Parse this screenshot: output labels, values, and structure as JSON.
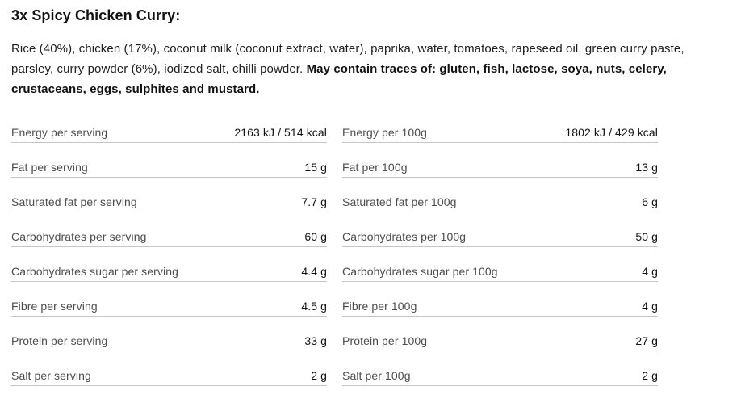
{
  "title": "3x Spicy Chicken Curry:",
  "ingredients": {
    "regular": "Rice (40%), chicken (17%), coconut milk (coconut extract, water), paprika, water, tomatoes, rapeseed oil, green curry paste, parsley, curry powder (6%), iodized salt, chilli powder. ",
    "bold": "May contain traces of: gluten, fish, lactose, soya, nuts, celery, crustaceans, eggs, sulphites and mustard."
  },
  "nutrition": {
    "per_serving": [
      {
        "label": "Energy per serving",
        "value": "2163 kJ / 514 kcal"
      },
      {
        "label": "Fat per serving",
        "value": "15 g"
      },
      {
        "label": "Saturated fat per serving",
        "value": "7.7 g"
      },
      {
        "label": "Carbohydrates per serving",
        "value": "60 g"
      },
      {
        "label": "Carbohydrates sugar per serving",
        "value": "4.4 g"
      },
      {
        "label": "Fibre per serving",
        "value": "4.5 g"
      },
      {
        "label": "Protein per serving",
        "value": "33 g"
      },
      {
        "label": "Salt per serving",
        "value": "2 g"
      }
    ],
    "per_100g": [
      {
        "label": "Energy per 100g",
        "value": "1802 kJ / 429 kcal"
      },
      {
        "label": "Fat per 100g",
        "value": "13 g"
      },
      {
        "label": "Saturated fat per 100g",
        "value": "6 g"
      },
      {
        "label": "Carbohydrates per 100g",
        "value": "50 g"
      },
      {
        "label": "Carbohydrates sugar per 100g",
        "value": "4 g"
      },
      {
        "label": "Fibre per 100g",
        "value": "4 g"
      },
      {
        "label": "Protein per 100g",
        "value": "27 g"
      },
      {
        "label": "Salt per 100g",
        "value": "2 g"
      }
    ]
  },
  "colors": {
    "background": "#ffffff",
    "label_text": "#4d4d4d",
    "value_text": "#121212",
    "divider": "#c6c6c6"
  }
}
